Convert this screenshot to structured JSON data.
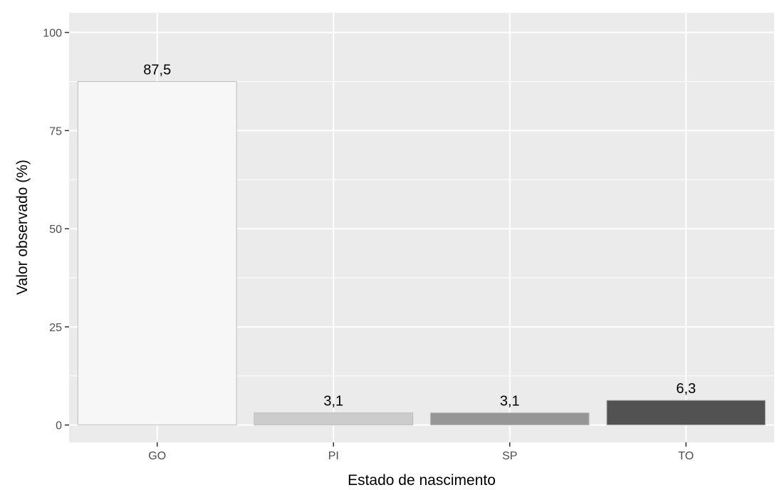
{
  "chart_data": {
    "type": "bar",
    "title": "",
    "xlabel": "Estado de nascimento",
    "ylabel": "Valor observado (%)",
    "categories": [
      "GO",
      "PI",
      "SP",
      "TO"
    ],
    "values": [
      87.5,
      3.1,
      3.1,
      6.3
    ],
    "data_labels": [
      "87,5",
      "3,1",
      "3,1",
      "6,3"
    ],
    "bar_colors": [
      "#f7f7f7",
      "#cccccc",
      "#969696",
      "#525252"
    ],
    "bar_outline_color": "#bdbdbd",
    "yticks": [
      0,
      25,
      50,
      75,
      100
    ],
    "ytick_labels": [
      "0",
      "25",
      "50",
      "75",
      "100"
    ],
    "ylim": [
      -4.4,
      105
    ],
    "grid": true,
    "legend": "none",
    "panel_background": "#ebebeb",
    "grid_color": "#ffffff"
  }
}
